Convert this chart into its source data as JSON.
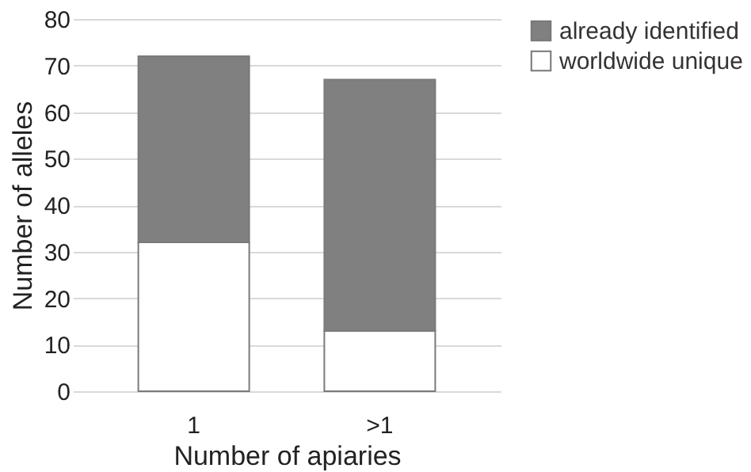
{
  "chart_data": {
    "type": "bar",
    "stacked": true,
    "xlabel": "Number of apiaries",
    "ylabel": "Number of alleles",
    "categories": [
      "1",
      ">1"
    ],
    "series": [
      {
        "name": "worldwide unique",
        "color": "#ffffff",
        "values": [
          32,
          13
        ]
      },
      {
        "name": "already identified",
        "color": "#808080",
        "values": [
          40,
          54
        ]
      }
    ],
    "ylim": [
      0,
      80
    ],
    "yticks": [
      0,
      10,
      20,
      30,
      40,
      50,
      60,
      70,
      80
    ],
    "grid": "y",
    "legend": "top right"
  }
}
